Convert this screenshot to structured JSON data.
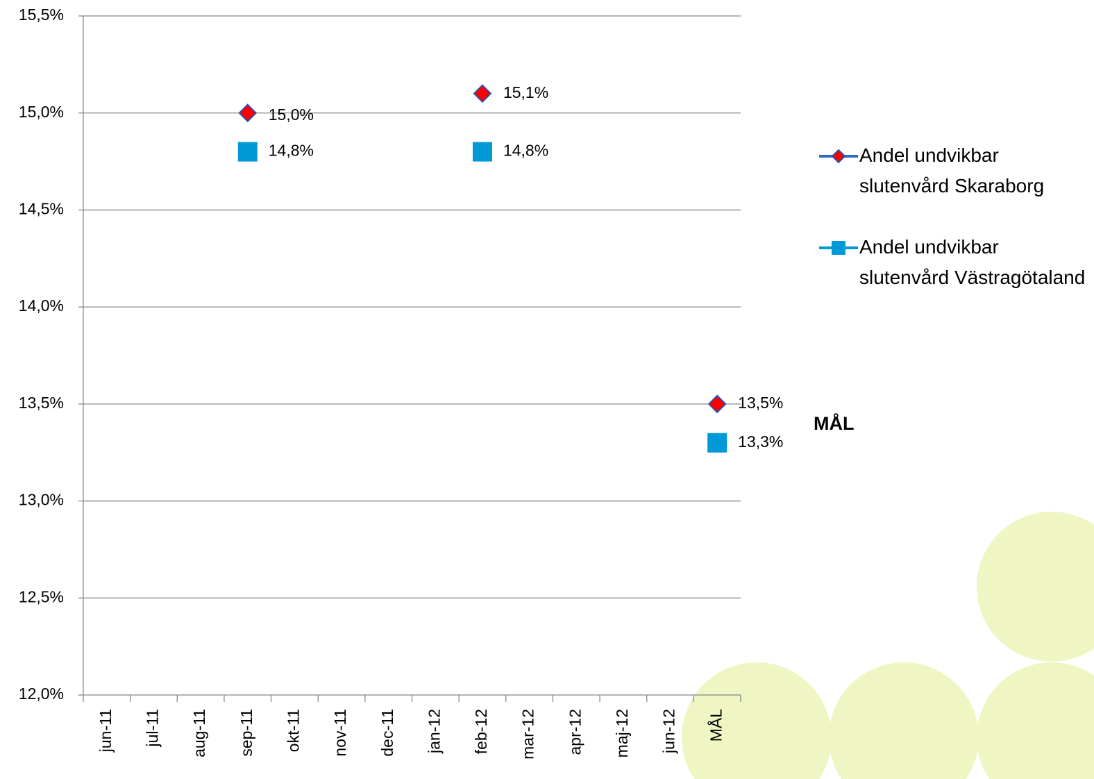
{
  "chart_data": {
    "type": "line",
    "categories": [
      "jun-11",
      "jul-11",
      "aug-11",
      "sep-11",
      "okt-11",
      "nov-11",
      "dec-11",
      "jan-12",
      "feb-12",
      "mar-12",
      "apr-12",
      "maj-12",
      "jun-12",
      "MÅL"
    ],
    "series": [
      {
        "name": "Andel undvikbar slutenvård Skaraborg",
        "color": "#ff0000",
        "line_color": "#2e6bc6",
        "marker": "diamond",
        "values": [
          null,
          null,
          null,
          15.0,
          null,
          null,
          null,
          null,
          15.1,
          null,
          null,
          null,
          null,
          13.5
        ],
        "value_labels": [
          null,
          null,
          null,
          "15,0%",
          null,
          null,
          null,
          null,
          "15,1%",
          null,
          null,
          null,
          null,
          "13,5%"
        ]
      },
      {
        "name": "Andel undvikbar slutenvård Västragötaland",
        "color": "#0099d8",
        "line_color": "#0099d8",
        "marker": "square",
        "values": [
          null,
          null,
          null,
          14.8,
          null,
          null,
          null,
          null,
          14.8,
          null,
          null,
          null,
          null,
          13.3
        ],
        "value_labels": [
          null,
          null,
          null,
          "14,8%",
          null,
          null,
          null,
          null,
          "14,8%",
          null,
          null,
          null,
          null,
          "13,3%"
        ]
      }
    ],
    "annotations": [
      "MÅL"
    ],
    "ylim": [
      12.0,
      15.5
    ],
    "yticks": [
      {
        "value": 12.0,
        "label": "12,0%"
      },
      {
        "value": 12.5,
        "label": "12,5%"
      },
      {
        "value": 13.0,
        "label": "13,0%"
      },
      {
        "value": 13.5,
        "label": "13,5%"
      },
      {
        "value": 14.0,
        "label": "14,0%"
      },
      {
        "value": 14.5,
        "label": "14,5%"
      },
      {
        "value": 15.0,
        "label": "15,0%"
      },
      {
        "value": 15.5,
        "label": "15,5%"
      }
    ],
    "grid": true,
    "legend": "right"
  }
}
